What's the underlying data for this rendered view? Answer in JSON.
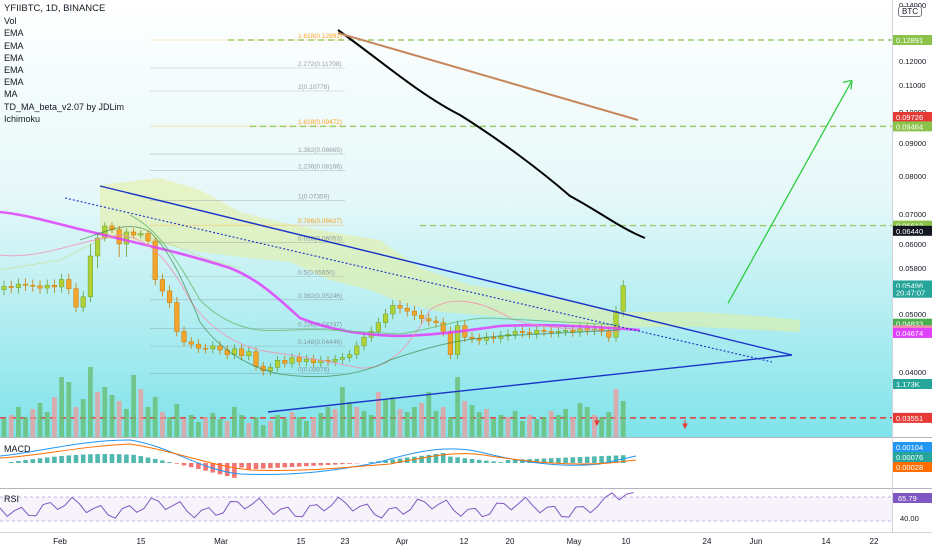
{
  "header": {
    "symbol": "YFIIBTC, 1D, BINANCE",
    "indicators": [
      "Vol",
      "EMA",
      "EMA",
      "EMA",
      "EMA",
      "EMA",
      "MA",
      "TD_MA_beta_v2.07 by JDLim",
      "Ichimoku"
    ],
    "currency_badge": "BTC"
  },
  "price_axis": {
    "ticks": [
      "0.14000",
      "0.12000",
      "0.11000",
      "0.10000",
      "0.09000",
      "0.08000",
      "0.07000",
      "0.06000",
      "0.05800",
      "0.05000",
      "0.04000"
    ],
    "badges": [
      {
        "label": "0.12891",
        "value": 0.12891,
        "color": "#8bc34a",
        "text_color": "#ffffff"
      },
      {
        "label": "0.09726",
        "value": 0.09726,
        "color": "#e53935",
        "text_color": "#ffffff"
      },
      {
        "label": "0.09464",
        "value": 0.09464,
        "color": "#8bc34a",
        "text_color": "#ffffff"
      },
      {
        "label": "0.06613",
        "value": 0.06613,
        "color": "#8bc34a",
        "text_color": "#ffffff"
      },
      {
        "label": "0.06440",
        "value": 0.0644,
        "color": "#131722",
        "text_color": "#ffffff"
      },
      {
        "label": "YFIIBTC",
        "value": 0.05496,
        "color": "#ffffff",
        "text_color": "#26a69a"
      },
      {
        "label": "0.05496",
        "value": 0.05496,
        "color": "#26a69a",
        "text_color": "#ffffff"
      },
      {
        "label": "20:47:07",
        "value": 0.0537,
        "color": "#26a69a",
        "text_color": "#ffffff"
      },
      {
        "label": "0.04833",
        "value": 0.04833,
        "color": "#4caf50",
        "text_color": "#ffffff"
      },
      {
        "label": "0.04718",
        "value": 0.04718,
        "color": "#f48fb1",
        "text_color": "#131722"
      },
      {
        "label": "0.04674",
        "value": 0.04674,
        "color": "#e040fb",
        "text_color": "#ffffff"
      },
      {
        "label": "1.173K",
        "value": 0.0383,
        "color": "#26a69a",
        "text_color": "#ffffff"
      },
      {
        "label": "0.03551",
        "value": 0.03551,
        "color": "#e53935",
        "text_color": "#ffffff"
      }
    ]
  },
  "fib_levels": [
    {
      "label": "1.618(0.12891)",
      "value": 0.12891,
      "color": "#ff9800"
    },
    {
      "label": "2.272(0.11708)",
      "value": 0.11708,
      "color": "#787b86"
    },
    {
      "label": "2(0.10778)",
      "value": 0.10778,
      "color": "#787b86"
    },
    {
      "label": "1.618(0.09472)",
      "value": 0.09472,
      "color": "#ff9800"
    },
    {
      "label": "1.382(0.08665)",
      "value": 0.08665,
      "color": "#787b86"
    },
    {
      "label": "1.236(0.08166)",
      "value": 0.08166,
      "color": "#787b86"
    },
    {
      "label": "1(0.07359)",
      "value": 0.07359,
      "color": "#787b86"
    },
    {
      "label": "0.786(0.06627)",
      "value": 0.06627,
      "color": "#ff9800"
    },
    {
      "label": "0.618(0.06053)",
      "value": 0.06053,
      "color": "#787b86"
    },
    {
      "label": "0.5(0.05650)",
      "value": 0.0565,
      "color": "#787b86"
    },
    {
      "label": "0.382(0.05246)",
      "value": 0.05246,
      "color": "#787b86"
    },
    {
      "label": "0.236(0.04747)",
      "value": 0.04747,
      "color": "#787b86"
    },
    {
      "label": "0.148(0.04446)",
      "value": 0.04446,
      "color": "#787b86"
    },
    {
      "label": "0(0.03976)",
      "value": 0.03976,
      "color": "#787b86"
    }
  ],
  "time_axis": {
    "labels": [
      "Feb",
      "15",
      "Mar",
      "15",
      "23",
      "Apr",
      "12",
      "20",
      "May",
      "10",
      "24",
      "Jun",
      "14",
      "22"
    ]
  },
  "macd": {
    "label": "MACD",
    "values": [
      {
        "label": "0.00104",
        "color": "#2196f3"
      },
      {
        "label": "0.00076",
        "color": "#26a69a"
      },
      {
        "label": "0.00028",
        "color": "#ff6d00"
      }
    ]
  },
  "rsi": {
    "label": "RSI",
    "value_label": "65.79",
    "value": 65.79,
    "axis_label": "40.00"
  },
  "chart_data": {
    "type": "candlestick",
    "title": "YFIIBTC, 1D, BINANCE",
    "close_values": [
      0.0548,
      0.0546,
      0.0552,
      0.055,
      0.0549,
      0.0545,
      0.055,
      0.0547,
      0.056,
      0.0544,
      0.0512,
      0.053,
      0.059,
      0.062,
      0.066,
      0.0648,
      0.06,
      0.064,
      0.063,
      0.0635,
      0.061,
      0.056,
      0.054,
      0.052,
      0.047,
      0.0452,
      0.0448,
      0.0441,
      0.044,
      0.0445,
      0.0438,
      0.043,
      0.044,
      0.0428,
      0.0435,
      0.041,
      0.0402,
      0.0408,
      0.042,
      0.0415,
      0.0425,
      0.0418,
      0.0422,
      0.0416,
      0.042,
      0.0418,
      0.0422,
      0.0425,
      0.043,
      0.0445,
      0.046,
      0.047,
      0.0485,
      0.05,
      0.0515,
      0.051,
      0.0505,
      0.0498,
      0.0492,
      0.0488,
      0.0485,
      0.047,
      0.043,
      0.048,
      0.046,
      0.0458,
      0.0455,
      0.046,
      0.0458,
      0.0462,
      0.0465,
      0.047,
      0.0468,
      0.0466,
      0.0472,
      0.047,
      0.0468,
      0.047,
      0.0472,
      0.0469,
      0.0475,
      0.0472,
      0.0474,
      0.047,
      0.046,
      0.0505,
      0.0549
    ],
    "last_price": 0.05496,
    "projection": {
      "from": 0.0536,
      "to": 0.1228
    }
  }
}
